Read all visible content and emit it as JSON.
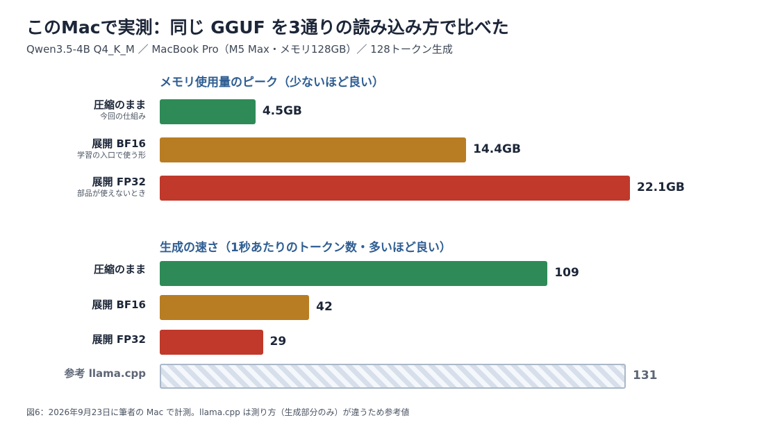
{
  "header": {
    "title": "このMacで実測：同じ GGUF を3通りの読み込み方で比べた",
    "subtitle": "Qwen3.5-4B Q4_K_M ／ MacBook Pro（M5 Max・メモリ128GB）／ 128トークン生成"
  },
  "colors": {
    "compressed": "#2e8b57",
    "bf16": "#b87d23",
    "fp32": "#c0392b",
    "reference": "#d6dfea"
  },
  "chart_data": [
    {
      "type": "bar",
      "orientation": "horizontal",
      "title": "メモリ使用量のピーク（少ないほど良い）",
      "categories": [
        "圧縮のまま",
        "展開 BF16",
        "展開 FP32"
      ],
      "category_notes": [
        "今回の仕組み",
        "学習の入口で使う形",
        "部品が使えないとき"
      ],
      "values": [
        4.5,
        14.4,
        22.1
      ],
      "value_labels": [
        "4.5GB",
        "14.4GB",
        "22.1GB"
      ],
      "unit": "GB"
    },
    {
      "type": "bar",
      "orientation": "horizontal",
      "title": "生成の速さ（1秒あたりのトークン数・多いほど良い）",
      "categories": [
        "圧縮のまま",
        "展開 BF16",
        "展開 FP32",
        "参考 llama.cpp"
      ],
      "values": [
        109,
        42,
        29,
        131
      ],
      "value_labels": [
        "109",
        "42",
        "29",
        "131"
      ]
    }
  ],
  "footnote": "図6：2026年9月23日に筆者の Mac で計測。llama.cpp は測り方（生成部分のみ）が違うため参考値"
}
